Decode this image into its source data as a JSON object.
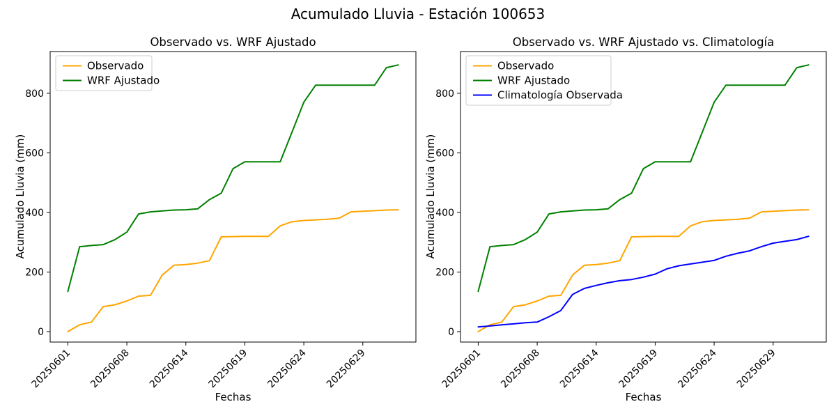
{
  "figure": {
    "suptitle": "Acumulado Lluvia - Estación 100653",
    "background": "#ffffff"
  },
  "chart_data": [
    {
      "type": "line",
      "title": "Observado vs. WRF Ajustado",
      "xlabel": "Fechas",
      "ylabel": "Acumulado Lluvia (mm)",
      "x_tick_labels": [
        "20250601",
        "20250608",
        "20250614",
        "20250619",
        "20250624",
        "20250629"
      ],
      "x_tick_positions": [
        0,
        5,
        10,
        15,
        20,
        25
      ],
      "n_points": 29,
      "xlim": [
        -1.5,
        29.5
      ],
      "ylim": [
        -35,
        940
      ],
      "yticks": [
        0,
        200,
        400,
        600,
        800
      ],
      "grid": false,
      "legend_position": "upper-left",
      "series": [
        {
          "name": "Observado",
          "color": "#FFA500",
          "values": [
            0,
            23,
            32,
            84,
            90,
            103,
            119,
            122,
            190,
            223,
            225,
            230,
            238,
            318,
            319,
            320,
            320,
            320,
            355,
            369,
            373,
            375,
            377,
            381,
            402,
            404,
            406,
            408,
            409
          ]
        },
        {
          "name": "WRF Ajustado",
          "color": "#008000",
          "values": [
            135,
            285,
            289,
            292,
            309,
            334,
            395,
            402,
            405,
            408,
            409,
            412,
            443,
            465,
            547,
            570,
            570,
            570,
            570,
            670,
            770,
            827,
            827,
            827,
            827,
            827,
            827,
            886,
            895
          ]
        }
      ]
    },
    {
      "type": "line",
      "title": "Observado vs. WRF Ajustado vs. Climatología",
      "xlabel": "Fechas",
      "ylabel": "Acumulado Lluvia (mm)",
      "x_tick_labels": [
        "20250601",
        "20250608",
        "20250614",
        "20250619",
        "20250624",
        "20250629"
      ],
      "x_tick_positions": [
        0,
        5,
        10,
        15,
        20,
        25
      ],
      "n_points": 29,
      "xlim": [
        -1.5,
        29.5
      ],
      "ylim": [
        -35,
        940
      ],
      "yticks": [
        0,
        200,
        400,
        600,
        800
      ],
      "grid": false,
      "legend_position": "upper-left",
      "series": [
        {
          "name": "Observado",
          "color": "#FFA500",
          "values": [
            0,
            23,
            32,
            84,
            90,
            103,
            119,
            122,
            190,
            223,
            225,
            230,
            238,
            318,
            319,
            320,
            320,
            320,
            355,
            369,
            373,
            375,
            377,
            381,
            402,
            404,
            406,
            408,
            409
          ]
        },
        {
          "name": "WRF Ajustado",
          "color": "#008000",
          "values": [
            135,
            285,
            289,
            292,
            309,
            334,
            395,
            402,
            405,
            408,
            409,
            412,
            443,
            465,
            547,
            570,
            570,
            570,
            570,
            670,
            770,
            827,
            827,
            827,
            827,
            827,
            827,
            886,
            895
          ]
        },
        {
          "name": "Climatología Observada",
          "color": "#0000FF",
          "values": [
            16,
            19,
            23,
            26,
            30,
            32,
            50,
            71,
            125,
            145,
            155,
            164,
            171,
            175,
            183,
            193,
            211,
            221,
            227,
            233,
            239,
            253,
            263,
            271,
            285,
            297,
            303,
            309,
            320
          ]
        }
      ]
    }
  ]
}
